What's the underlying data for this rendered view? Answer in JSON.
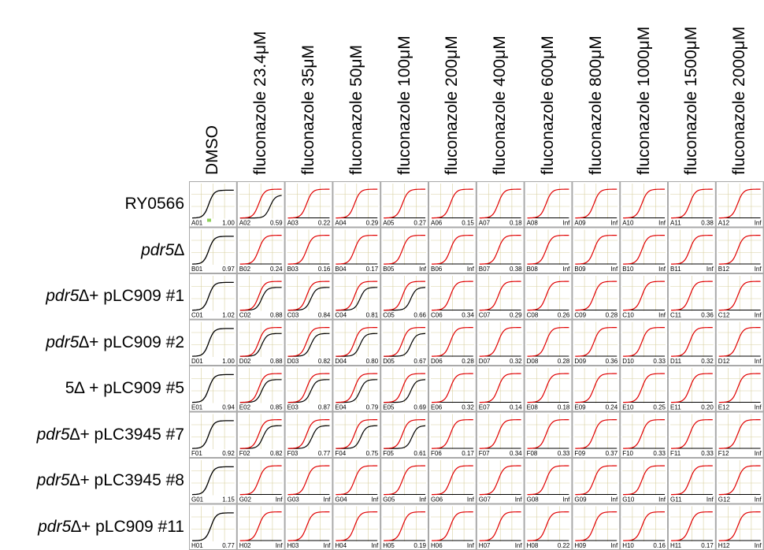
{
  "conditions": [
    "DMSO",
    "fluconazole 23.4μM",
    "fluconazole 35μM",
    "fluconazole 50μM",
    "fluconazole 100μM",
    "fluconazole 200μM",
    "fluconazole 400μM",
    "fluconazole 600μM",
    "fluconazole 800μM",
    "fluconazole 1000μM",
    "fluconazole 1500μM",
    "fluconazole 2000μM"
  ],
  "strains": [
    {
      "italic": "",
      "suffix": "RY0566"
    },
    {
      "italic": "pdr5∆",
      "suffix": ""
    },
    {
      "italic": "pdr5∆",
      "suffix": " + pLC909 #1"
    },
    {
      "italic": "pdr5∆",
      "suffix": " + pLC909 #2"
    },
    {
      "italic": "",
      "suffix": "5∆ + pLC909 #5"
    },
    {
      "italic": "pdr5∆",
      "suffix": " + pLC3945 #7"
    },
    {
      "italic": "pdr5∆",
      "suffix": " + pLC3945 #8"
    },
    {
      "italic": "pdr5∆",
      "suffix": " + pLC909 #11"
    }
  ],
  "colors": {
    "grid_line": "#d8d0a0",
    "plate_border": "#a9a9a9",
    "treated_curve": "#e00000",
    "control_curve": "#000000",
    "marker": "#8fd05a"
  },
  "wells": [
    [
      {
        "id": "A01",
        "value": "1.00",
        "black_midpoint": 0.4
      },
      {
        "id": "A02",
        "value": "0.59",
        "black_midpoint": 0.72
      },
      {
        "id": "A03",
        "value": "0.22",
        "black_midpoint": null
      },
      {
        "id": "A04",
        "value": "0.29",
        "black_midpoint": null
      },
      {
        "id": "A05",
        "value": "0.27",
        "black_midpoint": null
      },
      {
        "id": "A06",
        "value": "0.15",
        "black_midpoint": null
      },
      {
        "id": "A07",
        "value": "0.18",
        "black_midpoint": null
      },
      {
        "id": "A08",
        "value": "Inf",
        "black_midpoint": null
      },
      {
        "id": "A09",
        "value": "Inf",
        "black_midpoint": null
      },
      {
        "id": "A10",
        "value": "Inf",
        "black_midpoint": null
      },
      {
        "id": "A11",
        "value": "0.38",
        "black_midpoint": null
      },
      {
        "id": "A12",
        "value": "Inf",
        "black_midpoint": null
      }
    ],
    [
      {
        "id": "B01",
        "value": "0.97",
        "black_midpoint": 0.4
      },
      {
        "id": "B02",
        "value": "0.24",
        "black_midpoint": null
      },
      {
        "id": "B03",
        "value": "0.16",
        "black_midpoint": null
      },
      {
        "id": "B04",
        "value": "0.17",
        "black_midpoint": null
      },
      {
        "id": "B05",
        "value": "Inf",
        "black_midpoint": null
      },
      {
        "id": "B06",
        "value": "Inf",
        "black_midpoint": null
      },
      {
        "id": "B07",
        "value": "0.38",
        "black_midpoint": null
      },
      {
        "id": "B08",
        "value": "Inf",
        "black_midpoint": null
      },
      {
        "id": "B09",
        "value": "Inf",
        "black_midpoint": null
      },
      {
        "id": "B10",
        "value": "Inf",
        "black_midpoint": null
      },
      {
        "id": "B11",
        "value": "Inf",
        "black_midpoint": null
      },
      {
        "id": "B12",
        "value": "Inf",
        "black_midpoint": null
      }
    ],
    [
      {
        "id": "C01",
        "value": "1.02",
        "black_midpoint": 0.4
      },
      {
        "id": "C02",
        "value": "0.88",
        "black_midpoint": 0.52
      },
      {
        "id": "C03",
        "value": "0.84",
        "black_midpoint": 0.55
      },
      {
        "id": "C04",
        "value": "0.81",
        "black_midpoint": 0.58
      },
      {
        "id": "C05",
        "value": "0.66",
        "black_midpoint": 0.65
      },
      {
        "id": "C06",
        "value": "0.34",
        "black_midpoint": null
      },
      {
        "id": "C07",
        "value": "0.29",
        "black_midpoint": null
      },
      {
        "id": "C08",
        "value": "0.26",
        "black_midpoint": null
      },
      {
        "id": "C09",
        "value": "0.28",
        "black_midpoint": null
      },
      {
        "id": "C10",
        "value": "Inf",
        "black_midpoint": null
      },
      {
        "id": "C11",
        "value": "0.36",
        "black_midpoint": null
      },
      {
        "id": "C12",
        "value": "Inf",
        "black_midpoint": null
      }
    ],
    [
      {
        "id": "D01",
        "value": "1.00",
        "black_midpoint": 0.4
      },
      {
        "id": "D02",
        "value": "0.88",
        "black_midpoint": 0.52
      },
      {
        "id": "D03",
        "value": "0.82",
        "black_midpoint": 0.55
      },
      {
        "id": "D04",
        "value": "0.80",
        "black_midpoint": 0.58
      },
      {
        "id": "D05",
        "value": "0.67",
        "black_midpoint": 0.65
      },
      {
        "id": "D06",
        "value": "0.28",
        "black_midpoint": null
      },
      {
        "id": "D07",
        "value": "0.32",
        "black_midpoint": null
      },
      {
        "id": "D08",
        "value": "0.28",
        "black_midpoint": null
      },
      {
        "id": "D09",
        "value": "0.36",
        "black_midpoint": null
      },
      {
        "id": "D10",
        "value": "0.33",
        "black_midpoint": null
      },
      {
        "id": "D11",
        "value": "0.32",
        "black_midpoint": null
      },
      {
        "id": "D12",
        "value": "Inf",
        "black_midpoint": null
      }
    ],
    [
      {
        "id": "E01",
        "value": "0.94",
        "black_midpoint": 0.4
      },
      {
        "id": "E02",
        "value": "0.85",
        "black_midpoint": 0.52
      },
      {
        "id": "E03",
        "value": "0.87",
        "black_midpoint": 0.55
      },
      {
        "id": "E04",
        "value": "0.79",
        "black_midpoint": 0.58
      },
      {
        "id": "E05",
        "value": "0.69",
        "black_midpoint": 0.65
      },
      {
        "id": "E06",
        "value": "0.32",
        "black_midpoint": null
      },
      {
        "id": "E07",
        "value": "0.14",
        "black_midpoint": null
      },
      {
        "id": "E08",
        "value": "0.18",
        "black_midpoint": null
      },
      {
        "id": "E09",
        "value": "0.24",
        "black_midpoint": null
      },
      {
        "id": "E10",
        "value": "0.25",
        "black_midpoint": null
      },
      {
        "id": "E11",
        "value": "0.20",
        "black_midpoint": null
      },
      {
        "id": "E12",
        "value": "Inf",
        "black_midpoint": null
      }
    ],
    [
      {
        "id": "F01",
        "value": "0.92",
        "black_midpoint": 0.4
      },
      {
        "id": "F02",
        "value": "0.82",
        "black_midpoint": 0.55
      },
      {
        "id": "F03",
        "value": "0.77",
        "black_midpoint": 0.58
      },
      {
        "id": "F04",
        "value": "0.75",
        "black_midpoint": 0.6
      },
      {
        "id": "F05",
        "value": "0.61",
        "black_midpoint": 0.68
      },
      {
        "id": "F06",
        "value": "0.17",
        "black_midpoint": null
      },
      {
        "id": "F07",
        "value": "0.34",
        "black_midpoint": null
      },
      {
        "id": "F08",
        "value": "0.33",
        "black_midpoint": null
      },
      {
        "id": "F09",
        "value": "0.37",
        "black_midpoint": null
      },
      {
        "id": "F10",
        "value": "0.33",
        "black_midpoint": null
      },
      {
        "id": "F11",
        "value": "0.33",
        "black_midpoint": null
      },
      {
        "id": "F12",
        "value": "Inf",
        "black_midpoint": null
      }
    ],
    [
      {
        "id": "G01",
        "value": "1.15",
        "black_midpoint": 0.4
      },
      {
        "id": "G02",
        "value": "Inf",
        "black_midpoint": null
      },
      {
        "id": "G03",
        "value": "Inf",
        "black_midpoint": null
      },
      {
        "id": "G04",
        "value": "Inf",
        "black_midpoint": null
      },
      {
        "id": "G05",
        "value": "Inf",
        "black_midpoint": null
      },
      {
        "id": "G06",
        "value": "Inf",
        "black_midpoint": null
      },
      {
        "id": "G07",
        "value": "Inf",
        "black_midpoint": null
      },
      {
        "id": "G08",
        "value": "Inf",
        "black_midpoint": null
      },
      {
        "id": "G09",
        "value": "Inf",
        "black_midpoint": null
      },
      {
        "id": "G10",
        "value": "Inf",
        "black_midpoint": null
      },
      {
        "id": "G11",
        "value": "Inf",
        "black_midpoint": null
      },
      {
        "id": "G12",
        "value": "Inf",
        "black_midpoint": null
      }
    ],
    [
      {
        "id": "H01",
        "value": "0.77",
        "black_midpoint": 0.45
      },
      {
        "id": "H02",
        "value": "Inf",
        "black_midpoint": null
      },
      {
        "id": "H03",
        "value": "Inf",
        "black_midpoint": null
      },
      {
        "id": "H04",
        "value": "Inf",
        "black_midpoint": null
      },
      {
        "id": "H05",
        "value": "0.19",
        "black_midpoint": null
      },
      {
        "id": "H06",
        "value": "Inf",
        "black_midpoint": null
      },
      {
        "id": "H07",
        "value": "Inf",
        "black_midpoint": null
      },
      {
        "id": "H08",
        "value": "0.22",
        "black_midpoint": null
      },
      {
        "id": "H09",
        "value": "Inf",
        "black_midpoint": null
      },
      {
        "id": "H10",
        "value": "0.16",
        "black_midpoint": null
      },
      {
        "id": "H11",
        "value": "0.17",
        "black_midpoint": null
      },
      {
        "id": "H12",
        "value": "Inf",
        "black_midpoint": null
      }
    ]
  ]
}
